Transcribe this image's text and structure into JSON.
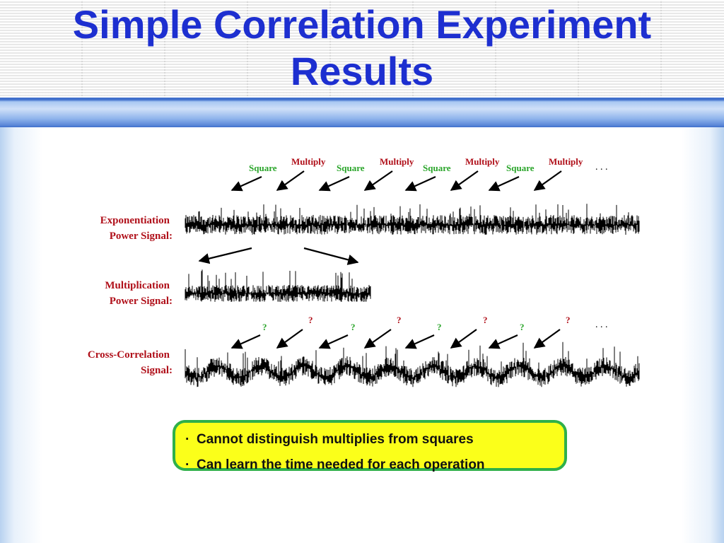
{
  "title": {
    "line1": "Simple Correlation Experiment",
    "line2": "Results"
  },
  "diagram": {
    "top_labels": [
      "Square",
      "Multiply",
      "Square",
      "Multiply",
      "Square",
      "Multiply",
      "Square",
      "Multiply"
    ],
    "cross_labels": [
      "?",
      "?",
      "?",
      "?",
      "?",
      "?",
      "?",
      "?"
    ],
    "ellipsis": ". . .",
    "signals": [
      {
        "line1": "Exponentiation",
        "line2": "Power Signal:"
      },
      {
        "line1": "Multiplication",
        "line2": "Power Signal:"
      },
      {
        "line1": "Cross-Correlation",
        "line2": "Signal:"
      }
    ]
  },
  "callout": {
    "bullets": [
      "Cannot distinguish multiplies from squares",
      "Can learn the time needed for each operation"
    ]
  },
  "colors": {
    "title": "#1d2fd0",
    "square_label": "#2aa52a",
    "multiply_label": "#b0101a",
    "callout_fill": "#fbff1a",
    "callout_border": "#2fb04a"
  }
}
